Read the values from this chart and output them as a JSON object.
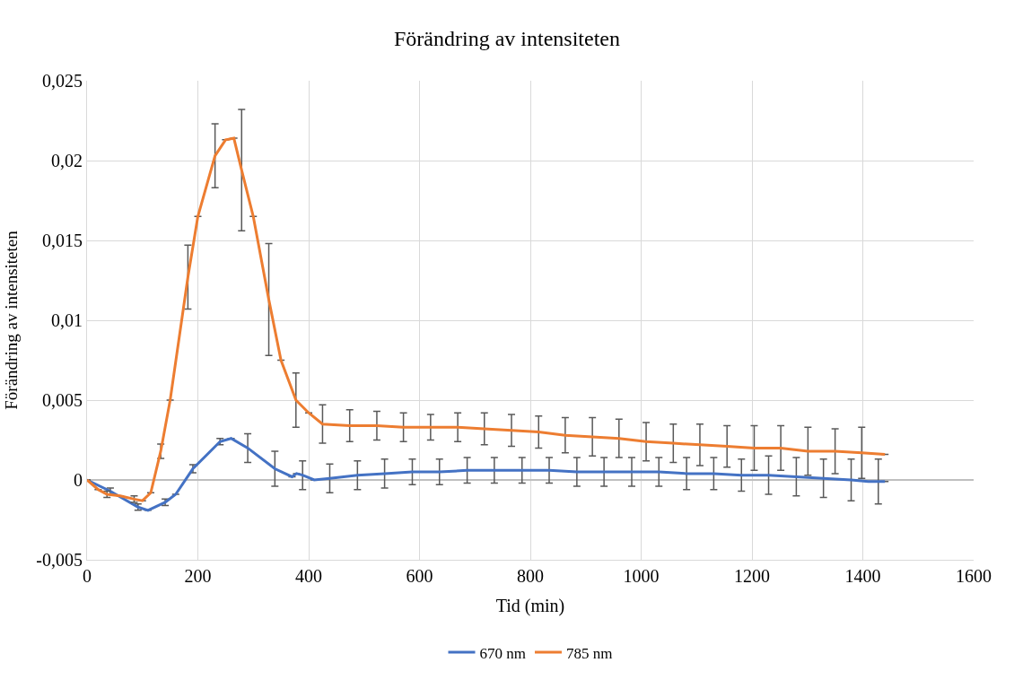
{
  "chart_data": {
    "type": "line",
    "title": "Förändring av intensiteten",
    "xlabel": "Tid (min)",
    "ylabel": "Förändring av intensiteten",
    "xlim": [
      0,
      1600
    ],
    "xticks": [
      0,
      200,
      400,
      600,
      800,
      1000,
      1200,
      1400,
      1600
    ],
    "ylim": [
      -0.005,
      0.025
    ],
    "yticks": [
      {
        "value": -0.005,
        "label": "-0,005"
      },
      {
        "value": 0,
        "label": "0"
      },
      {
        "value": 0.005,
        "label": "0,005"
      },
      {
        "value": 0.01,
        "label": "0,01"
      },
      {
        "value": 0.015,
        "label": "0,015"
      },
      {
        "value": 0.02,
        "label": "0,02"
      },
      {
        "value": 0.025,
        "label": "0,025"
      }
    ],
    "grid": true,
    "legend": "bottom",
    "marker": "none",
    "line_style": "solid",
    "series": [
      {
        "name": "670 nm",
        "color": "#4472c4",
        "x": [
          0,
          42,
          92,
          110,
          141,
          160,
          191,
          240,
          260,
          290,
          339,
          370,
          378,
          389,
          410,
          438,
          488,
          537,
          587,
          636,
          686,
          735,
          785,
          834,
          884,
          933,
          983,
          1032,
          1082,
          1131,
          1181,
          1230,
          1280,
          1329,
          1379,
          1410,
          1428,
          1440
        ],
        "values": [
          0,
          -0.0007,
          -0.0017,
          -0.0019,
          -0.0014,
          -0.0009,
          0.0007,
          0.0024,
          0.0026,
          0.002,
          0.0007,
          0.0002,
          0.0004,
          0.0003,
          0.0,
          0.0001,
          0.0003,
          0.0004,
          0.0005,
          0.0005,
          0.0006,
          0.0006,
          0.0006,
          0.0006,
          0.0005,
          0.0005,
          0.0005,
          0.0005,
          0.0004,
          0.0004,
          0.0003,
          0.0003,
          0.0002,
          0.0001,
          0.0,
          -0.0001,
          -0.0001,
          -0.0001
        ],
        "errors": [
          null,
          0.0002,
          0.0002,
          null,
          0.0002,
          null,
          0.00025,
          0.0002,
          null,
          0.0009,
          0.0011,
          null,
          null,
          0.0009,
          null,
          0.0009,
          0.0009,
          0.0009,
          0.0008,
          0.0008,
          0.0008,
          0.0008,
          0.0008,
          0.0008,
          0.0009,
          0.0009,
          0.0009,
          0.0009,
          0.001,
          0.001,
          0.001,
          0.0012,
          0.0012,
          0.0012,
          0.0013,
          null,
          0.0014,
          null
        ]
      },
      {
        "name": "785 nm",
        "color": "#ed7d31",
        "x": [
          0,
          20,
          36,
          60,
          85,
          100,
          115,
          133,
          150,
          182,
          200,
          231,
          250,
          265,
          279,
          300,
          328,
          350,
          377,
          400,
          425,
          474,
          523,
          571,
          620,
          669,
          717,
          766,
          815,
          863,
          912,
          960,
          1009,
          1058,
          1106,
          1155,
          1204,
          1252,
          1301,
          1350,
          1398,
          1440
        ],
        "values": [
          0,
          -0.0006,
          -0.0009,
          -0.001,
          -0.0012,
          -0.0013,
          -0.0008,
          0.0018,
          0.005,
          0.0127,
          0.0165,
          0.0203,
          0.0213,
          0.0214,
          0.0194,
          0.0165,
          0.0113,
          0.0075,
          0.005,
          0.0042,
          0.0035,
          0.0034,
          0.0034,
          0.0033,
          0.0033,
          0.0033,
          0.0032,
          0.0031,
          0.003,
          0.0028,
          0.0027,
          0.0026,
          0.0024,
          0.0023,
          0.0022,
          0.0021,
          0.002,
          0.002,
          0.0018,
          0.0018,
          0.0017,
          0.0016
        ],
        "errors": [
          null,
          null,
          0.0002,
          null,
          0.0002,
          null,
          null,
          0.00045,
          null,
          0.002,
          null,
          0.002,
          null,
          null,
          0.0038,
          null,
          0.0035,
          null,
          0.0017,
          null,
          0.0012,
          0.001,
          0.0009,
          0.0009,
          0.0008,
          0.0009,
          0.001,
          0.001,
          0.001,
          0.0011,
          0.0012,
          0.0012,
          0.0012,
          0.0012,
          0.0013,
          0.0013,
          0.0014,
          0.0014,
          0.0015,
          0.0014,
          0.0016,
          null
        ]
      }
    ]
  }
}
